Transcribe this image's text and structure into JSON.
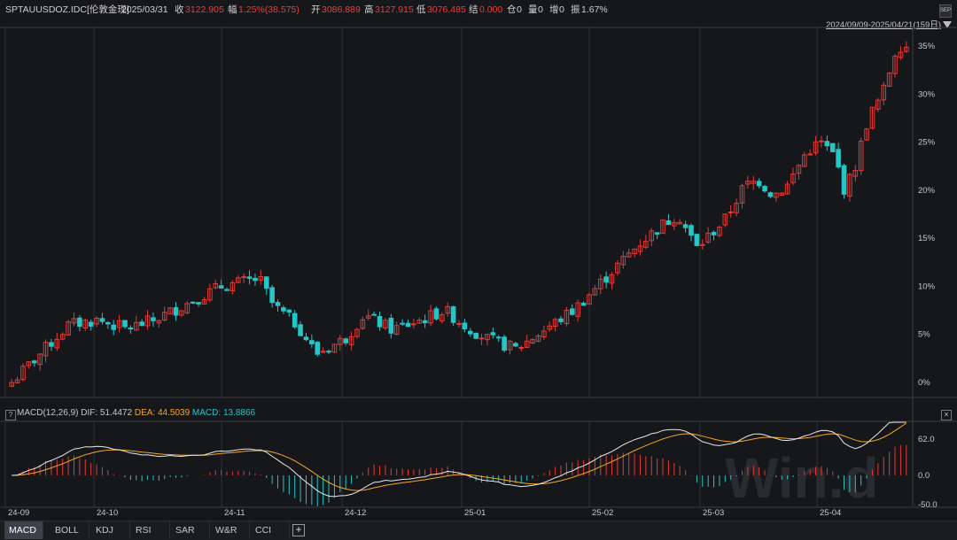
{
  "header": {
    "symbol": "SPTAUUSDOZ.IDC[伦敦金现]",
    "date": "2025/03/31",
    "close_label": "收",
    "close_value": "3122.905",
    "change_label": "幅",
    "change_value": "1.25%(38.575)",
    "open_label": "开",
    "open_value": "3086.889",
    "high_label": "高",
    "high_value": "3127.915",
    "low_label": "低",
    "low_value": "3076.485",
    "settle_label": "结",
    "settle_value": "0.000",
    "oi_label": "仓",
    "oi_value": "0",
    "volume_label": "量",
    "volume_value": "0",
    "increase_label": "增",
    "increase_value": "0",
    "amplitude_label": "振",
    "amplitude_value": "1.67%",
    "range": "2024/09/09-2025/04/21(159日)",
    "logo_text": "SEP"
  },
  "main_axis": {
    "ticks": [
      "35%",
      "30%",
      "25%",
      "20%",
      "15%",
      "10%",
      "5%",
      "0%"
    ]
  },
  "indicator": {
    "name": "MACD(12,26,9)",
    "dif_label": "DIF:",
    "dif_value": "51.4472",
    "dea_label": "DEA:",
    "dea_value": "44.5039",
    "macd_label": "MACD:",
    "macd_value": "13.8866",
    "ticks": [
      "62.0",
      "0.0",
      "-50.0"
    ],
    "help_icon": "?",
    "close_icon": "×"
  },
  "time_axis": [
    "24-09",
    "24-10",
    "24-11",
    "24-12",
    "25-01",
    "25-02",
    "25-03",
    "25-04"
  ],
  "watermark": "Win.d",
  "tabs": [
    "MACD",
    "BOLL",
    "KDJ",
    "RSI",
    "SAR",
    "W&R",
    "CCI"
  ],
  "colors": {
    "up": "#e53935",
    "down": "#26c6c6",
    "dif": "#e8e8e8",
    "dea": "#f5a623",
    "grid": "#2e3035"
  }
}
